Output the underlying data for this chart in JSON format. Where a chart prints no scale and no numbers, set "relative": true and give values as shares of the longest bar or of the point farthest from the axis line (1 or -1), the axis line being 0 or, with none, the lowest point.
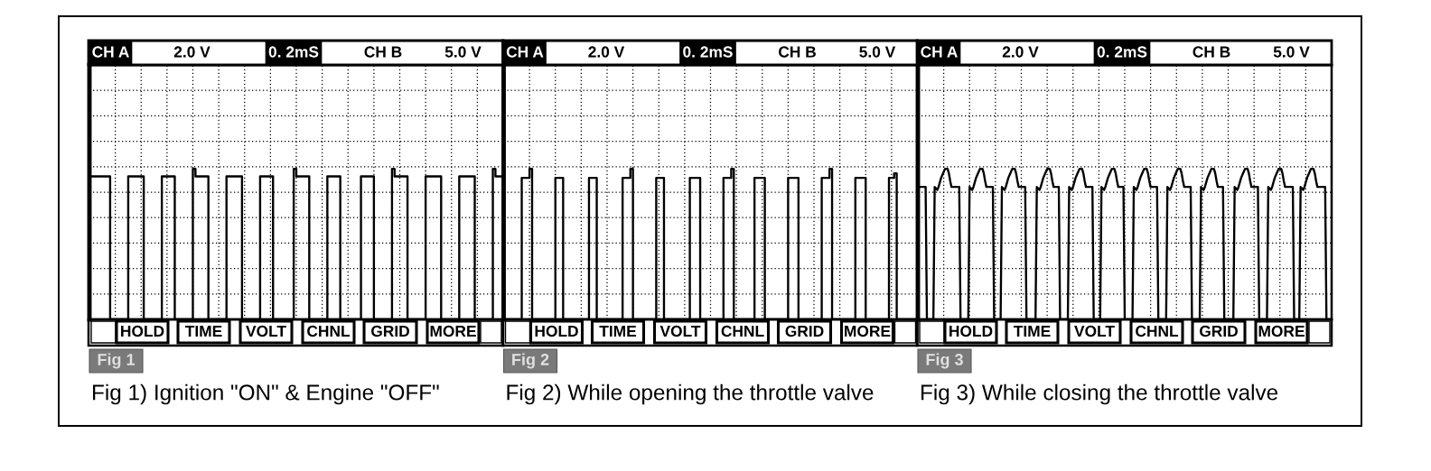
{
  "chart_data": [
    {
      "type": "step",
      "title": "Fig 1) Ignition \"ON\" & Engine \"OFF\"",
      "subtitle": "Fig 1",
      "annotations": [
        "CH A",
        "2.0 V",
        "0. 2mS",
        "CH B",
        "5.0 V",
        "HOLD",
        "TIME",
        "VOLT",
        "CHNL",
        "GRID",
        "MORE"
      ],
      "relative": true,
      "grid": true,
      "categories": [
        null,
        null,
        null,
        null,
        null,
        null,
        null,
        null,
        null,
        null,
        null,
        null,
        null,
        null,
        null,
        null,
        null,
        null,
        null,
        null,
        null,
        null,
        null,
        null,
        null,
        null,
        null,
        null,
        null,
        null,
        null,
        null,
        null,
        null,
        null,
        null,
        null,
        null,
        null,
        null,
        null,
        null,
        null,
        null,
        null,
        null,
        null,
        null,
        null,
        null,
        null,
        null,
        null,
        null,
        null,
        null,
        null,
        null,
        null,
        null,
        null,
        null,
        null,
        null,
        null,
        null,
        null,
        null,
        null,
        null,
        null,
        null,
        null,
        null,
        null,
        null,
        null,
        null,
        null,
        null,
        null,
        null,
        null,
        null,
        null,
        null,
        null,
        null,
        null,
        null,
        null,
        null,
        null,
        null,
        null,
        null,
        null,
        null,
        null,
        null,
        null,
        null,
        null,
        null,
        null,
        null,
        null,
        null,
        null,
        null,
        null,
        null,
        null,
        null,
        null,
        null,
        null,
        null,
        null,
        null,
        null,
        null,
        null,
        null,
        null,
        null,
        null,
        null,
        null,
        null,
        null,
        null,
        null,
        null,
        null,
        null,
        null,
        null,
        null,
        null,
        null,
        null,
        null,
        null,
        null,
        null,
        null,
        null,
        null,
        null,
        null,
        null,
        null,
        null,
        null,
        null,
        null,
        null,
        null,
        null,
        null
      ],
      "series": [
        {
          "color": "#000000",
          "values": [
            0.95,
            0.95,
            0.95,
            0.95,
            0.95,
            0.95,
            0.95,
            0.95,
            0,
            0,
            0,
            0,
            0,
            0,
            0,
            0.95,
            0.95,
            0.95,
            0.95,
            0.95,
            0.95,
            0,
            0,
            0,
            0,
            0,
            0,
            0,
            0.95,
            0.95,
            0.95,
            0.95,
            0.95,
            0,
            0,
            0,
            0,
            0,
            0,
            0,
            1,
            0.95,
            0.95,
            0.95,
            0.95,
            0.95,
            0,
            0,
            0,
            0,
            0,
            0,
            0,
            0.95,
            0.95,
            0.95,
            0.95,
            0.95,
            0.95,
            0,
            0,
            0,
            0,
            0,
            0,
            0,
            0.95,
            0.95,
            0.95,
            0.95,
            0.95,
            0,
            0,
            0,
            0,
            0,
            0,
            0,
            0,
            1,
            0.95,
            0.95,
            0.95,
            0.95,
            0.95,
            0,
            0,
            0,
            0,
            0,
            0,
            0,
            0.95,
            0.95,
            0.95,
            0.95,
            0.95,
            0,
            0,
            0,
            0,
            0,
            0,
            0,
            0,
            0.95,
            0.95,
            0.95,
            0.95,
            0.95,
            0,
            0,
            0,
            0,
            0,
            0,
            0,
            1,
            0.95,
            0.95,
            0.95,
            0.95,
            0.95,
            0,
            0,
            0,
            0,
            0,
            0,
            0,
            0.95,
            0.95,
            0.95,
            0.95,
            0.95,
            0.95,
            0,
            0,
            0,
            0,
            0,
            0,
            0,
            0.95,
            0.95,
            0.95,
            0.95,
            0.95,
            0.95,
            0,
            0,
            0,
            0,
            0,
            0,
            0,
            1,
            0.95,
            0.95,
            0.95,
            0.95
          ]
        }
      ]
    },
    {
      "type": "step",
      "title": "Fig 2) While opening the throttle valve",
      "subtitle": "Fig 2",
      "annotations": [
        "CH A",
        "2.0 V",
        "0. 2mS",
        "CH B",
        "5.0 V",
        "HOLD",
        "TIME",
        "VOLT",
        "CHNL",
        "GRID",
        "MORE"
      ],
      "relative": true,
      "grid": true,
      "categories": [
        null,
        null,
        null,
        null,
        null,
        null,
        null,
        null,
        null,
        null,
        null,
        null,
        null,
        null,
        null,
        null,
        null,
        null,
        null,
        null,
        null,
        null,
        null,
        null,
        null,
        null,
        null,
        null,
        null,
        null,
        null,
        null,
        null,
        null,
        null,
        null,
        null,
        null,
        null,
        null,
        null,
        null,
        null,
        null,
        null,
        null,
        null,
        null,
        null,
        null,
        null,
        null,
        null,
        null,
        null,
        null,
        null,
        null,
        null,
        null,
        null,
        null,
        null,
        null,
        null,
        null,
        null,
        null,
        null,
        null,
        null,
        null,
        null,
        null,
        null,
        null,
        null,
        null,
        null,
        null,
        null,
        null,
        null,
        null,
        null,
        null,
        null,
        null,
        null,
        null,
        null,
        null,
        null,
        null,
        null,
        null,
        null,
        null,
        null,
        null,
        null,
        null,
        null,
        null,
        null,
        null,
        null,
        null,
        null,
        null,
        null,
        null,
        null,
        null,
        null,
        null,
        null,
        null,
        null,
        null,
        null,
        null,
        null,
        null,
        null,
        null,
        null,
        null,
        null,
        null,
        null,
        null,
        null,
        null,
        null,
        null,
        null,
        null,
        null,
        null,
        null,
        null,
        null,
        null,
        null,
        null,
        null,
        null,
        null,
        null,
        null,
        null,
        null,
        null,
        null,
        null,
        null,
        null,
        null,
        null,
        null
      ],
      "series": [
        {
          "color": "#000000",
          "values": [
            0,
            0,
            0,
            0,
            0,
            0,
            0,
            0.94,
            0.94,
            0.94,
            1,
            0,
            0,
            0,
            0,
            0,
            0,
            0,
            0,
            0,
            0.94,
            0.94,
            0.94,
            0,
            0,
            0,
            0,
            0,
            0,
            0,
            0,
            0,
            0,
            0.94,
            0.94,
            0.94,
            0,
            0,
            0,
            0,
            0,
            0,
            0,
            0,
            0,
            0,
            0.94,
            0.94,
            0.94,
            1,
            0,
            0,
            0,
            0,
            0,
            0,
            0,
            0,
            0,
            0.94,
            0.94,
            0.94,
            0,
            0,
            0,
            0,
            0,
            0,
            0,
            0,
            0,
            0,
            0.94,
            0.94,
            0.94,
            0.94,
            0,
            0,
            0,
            0,
            0,
            0,
            0,
            0,
            0,
            0.94,
            0.94,
            0.94,
            1,
            0,
            0,
            0,
            0,
            0,
            0,
            0,
            0,
            0.94,
            0.94,
            0.94,
            0.94,
            0,
            0,
            0,
            0,
            0,
            0,
            0,
            0,
            0,
            0.94,
            0.94,
            0.94,
            0.94,
            0,
            0,
            0,
            0,
            0,
            0,
            0,
            0,
            0,
            0.94,
            0.94,
            0.94,
            1,
            0,
            0,
            0,
            0,
            0,
            0,
            0,
            0,
            0,
            0.94,
            0.94,
            0.94,
            0.94,
            0,
            0,
            0,
            0,
            0,
            0,
            0,
            0,
            0,
            0.94,
            0.94,
            0.97,
            0,
            0,
            0,
            0,
            0,
            0,
            0,
            0,
            0
          ]
        }
      ]
    },
    {
      "type": "line",
      "title": "Fig 3) While closing the throttle valve",
      "subtitle": "Fig 3",
      "annotations": [
        "CH A",
        "2.0 V",
        "0. 2mS",
        "CH B",
        "5.0 V",
        "HOLD",
        "TIME",
        "VOLT",
        "CHNL",
        "GRID",
        "MORE"
      ],
      "relative": true,
      "grid": true,
      "categories": [
        null,
        null,
        null,
        null,
        null,
        null,
        null,
        null,
        null,
        null,
        null,
        null,
        null,
        null,
        null,
        null,
        null,
        null,
        null,
        null,
        null,
        null,
        null,
        null,
        null,
        null,
        null,
        null,
        null,
        null,
        null,
        null,
        null,
        null,
        null,
        null,
        null,
        null,
        null,
        null,
        null,
        null,
        null,
        null,
        null,
        null,
        null,
        null,
        null,
        null,
        null,
        null,
        null,
        null,
        null,
        null,
        null,
        null,
        null,
        null,
        null,
        null,
        null,
        null,
        null,
        null,
        null,
        null,
        null,
        null,
        null,
        null,
        null,
        null,
        null,
        null,
        null,
        null,
        null,
        null,
        null,
        null,
        null,
        null,
        null,
        null,
        null,
        null,
        null,
        null,
        null,
        null,
        null,
        null,
        null,
        null,
        null,
        null,
        null,
        null,
        null,
        null,
        null,
        null,
        null,
        null,
        null,
        null,
        null,
        null,
        null,
        null,
        null,
        null,
        null,
        null,
        null,
        null,
        null,
        null,
        null,
        null,
        null,
        null,
        null,
        null,
        null,
        null,
        null,
        null,
        null,
        null,
        null,
        null,
        null,
        null,
        null,
        null,
        null,
        null,
        null,
        null,
        null,
        null,
        null,
        null,
        null,
        null,
        null,
        null,
        null,
        null,
        null,
        null,
        null,
        null,
        null,
        null,
        null,
        null,
        null,
        null,
        null,
        null,
        null,
        null,
        null,
        null,
        null,
        null,
        null,
        null,
        null,
        null,
        null,
        null,
        null,
        null,
        null,
        null,
        null,
        null,
        null,
        null,
        null,
        null,
        null,
        null,
        null,
        null,
        null,
        null,
        null,
        null,
        null,
        null,
        null,
        null,
        null,
        null,
        null,
        null,
        null,
        null,
        null,
        null,
        null,
        null,
        null,
        null,
        null,
        null,
        null,
        null,
        null,
        null,
        null,
        null,
        null,
        null,
        null,
        null,
        null,
        null,
        null,
        null,
        null,
        null,
        null,
        null,
        null,
        null,
        null,
        null,
        null,
        null,
        null,
        null,
        null,
        null,
        null,
        null,
        null,
        null,
        null,
        null,
        null,
        null,
        null,
        null,
        null,
        null,
        null,
        null,
        null,
        null,
        null,
        null,
        null,
        null,
        null,
        null,
        null,
        null,
        null,
        null,
        null,
        null,
        null,
        null,
        null,
        null,
        null,
        null,
        null,
        null,
        null,
        null,
        null,
        null,
        null,
        null,
        null,
        null,
        null,
        null,
        null,
        null,
        null,
        null,
        null,
        null,
        null,
        null,
        null,
        null,
        null,
        null,
        null,
        null,
        null,
        null,
        null,
        null,
        null,
        null,
        null,
        null,
        null,
        null,
        null,
        null,
        null,
        null,
        null,
        null,
        null,
        null,
        null,
        null,
        null
      ],
      "series": [
        {
          "color": "#000000",
          "values": [
            0.88,
            0.88,
            0.88,
            0.88,
            0.88,
            0.88,
            0.88,
            0,
            0,
            0,
            0,
            0,
            0,
            0.88,
            0.87,
            0.86,
            0.88,
            0.91,
            0.94,
            0.96,
            0.98,
            1,
            1,
            1,
            0.97,
            0.92,
            0.88,
            0.88,
            0.88,
            0.88,
            0.88,
            0.88,
            0.88,
            0,
            0,
            0,
            0,
            0,
            0,
            0,
            0.88,
            0.87,
            0.86,
            0.88,
            0.91,
            0.94,
            0.96,
            0.98,
            1,
            1,
            1,
            0.97,
            0.92,
            0.88,
            0.88,
            0.88,
            0.88,
            0.88,
            0.88,
            0,
            0,
            0,
            0,
            0,
            0,
            0.88,
            0.87,
            0.86,
            0.88,
            0.91,
            0.94,
            0.96,
            0.98,
            1,
            1,
            1,
            0.97,
            0.92,
            0.88,
            0.88,
            0.88,
            0.88,
            0.88,
            0.88,
            0,
            0,
            0,
            0,
            0,
            0,
            0,
            0,
            0.88,
            0.87,
            0.86,
            0.88,
            0.91,
            0.94,
            0.96,
            0.98,
            1,
            1,
            1,
            0.97,
            0.92,
            0.88,
            0.88,
            0.88,
            0.88,
            0.88,
            0,
            0,
            0,
            0,
            0,
            0,
            0,
            0.88,
            0.87,
            0.86,
            0.88,
            0.91,
            0.94,
            0.96,
            0.98,
            1,
            1,
            1,
            0.97,
            0.92,
            0.88,
            0.88,
            0.88,
            0.88,
            0.88,
            0.88,
            0,
            0,
            0,
            0,
            0,
            0,
            0.88,
            0.87,
            0.86,
            0.88,
            0.91,
            0.94,
            0.96,
            0.98,
            1,
            1,
            1,
            0.97,
            0.92,
            0.88,
            0.88,
            0.88,
            0.88,
            0.88,
            0,
            0,
            0,
            0,
            0,
            0,
            0,
            0.88,
            0.87,
            0.86,
            0.88,
            0.91,
            0.94,
            0.96,
            0.98,
            1,
            1,
            1,
            0.97,
            0.92,
            0.88,
            0.88,
            0.88,
            0.88,
            0.88,
            0.88,
            0,
            0,
            0,
            0,
            0,
            0,
            0,
            0.88,
            0.87,
            0.86,
            0.88,
            0.91,
            0.94,
            0.96,
            0.98,
            1,
            1,
            1,
            0.97,
            0.92,
            0.88,
            0.88,
            0.88,
            0.88,
            0.88,
            0.88,
            0,
            0,
            0,
            0,
            0,
            0,
            0,
            0.88,
            0.87,
            0.86,
            0.88,
            0.91,
            0.94,
            0.96,
            0.98,
            1,
            1,
            1,
            0.97,
            0.92,
            0.88,
            0.88,
            0.88,
            0.88,
            0.88,
            0,
            0,
            0,
            0,
            0,
            0,
            0,
            0,
            0.88,
            0.87,
            0.86,
            0.88,
            0.91,
            0.94,
            0.96,
            0.98,
            1,
            1,
            1,
            0.97,
            0.92,
            0.88,
            0.88,
            0.88,
            0.88,
            0.88,
            0.88,
            0,
            0,
            0,
            0,
            0,
            0,
            0,
            0.88,
            0.87,
            0.86,
            0.88,
            0.91,
            0.94,
            0.96,
            0.98,
            1,
            1,
            1,
            0.97,
            0.92,
            0.88,
            0.88,
            0.88,
            0.88,
            0.88,
            0.88,
            0.88,
            0,
            0,
            0,
            0,
            0,
            0.88,
            0.87,
            0.86,
            0.88,
            0.91,
            0.94,
            0.96,
            0.98,
            1,
            1,
            1,
            0.97,
            0.92,
            0.88,
            0.88,
            0.88,
            0.88,
            0.88,
            0.88,
            0.88,
            0,
            0,
            0,
            0,
            0
          ]
        }
      ]
    }
  ]
}
